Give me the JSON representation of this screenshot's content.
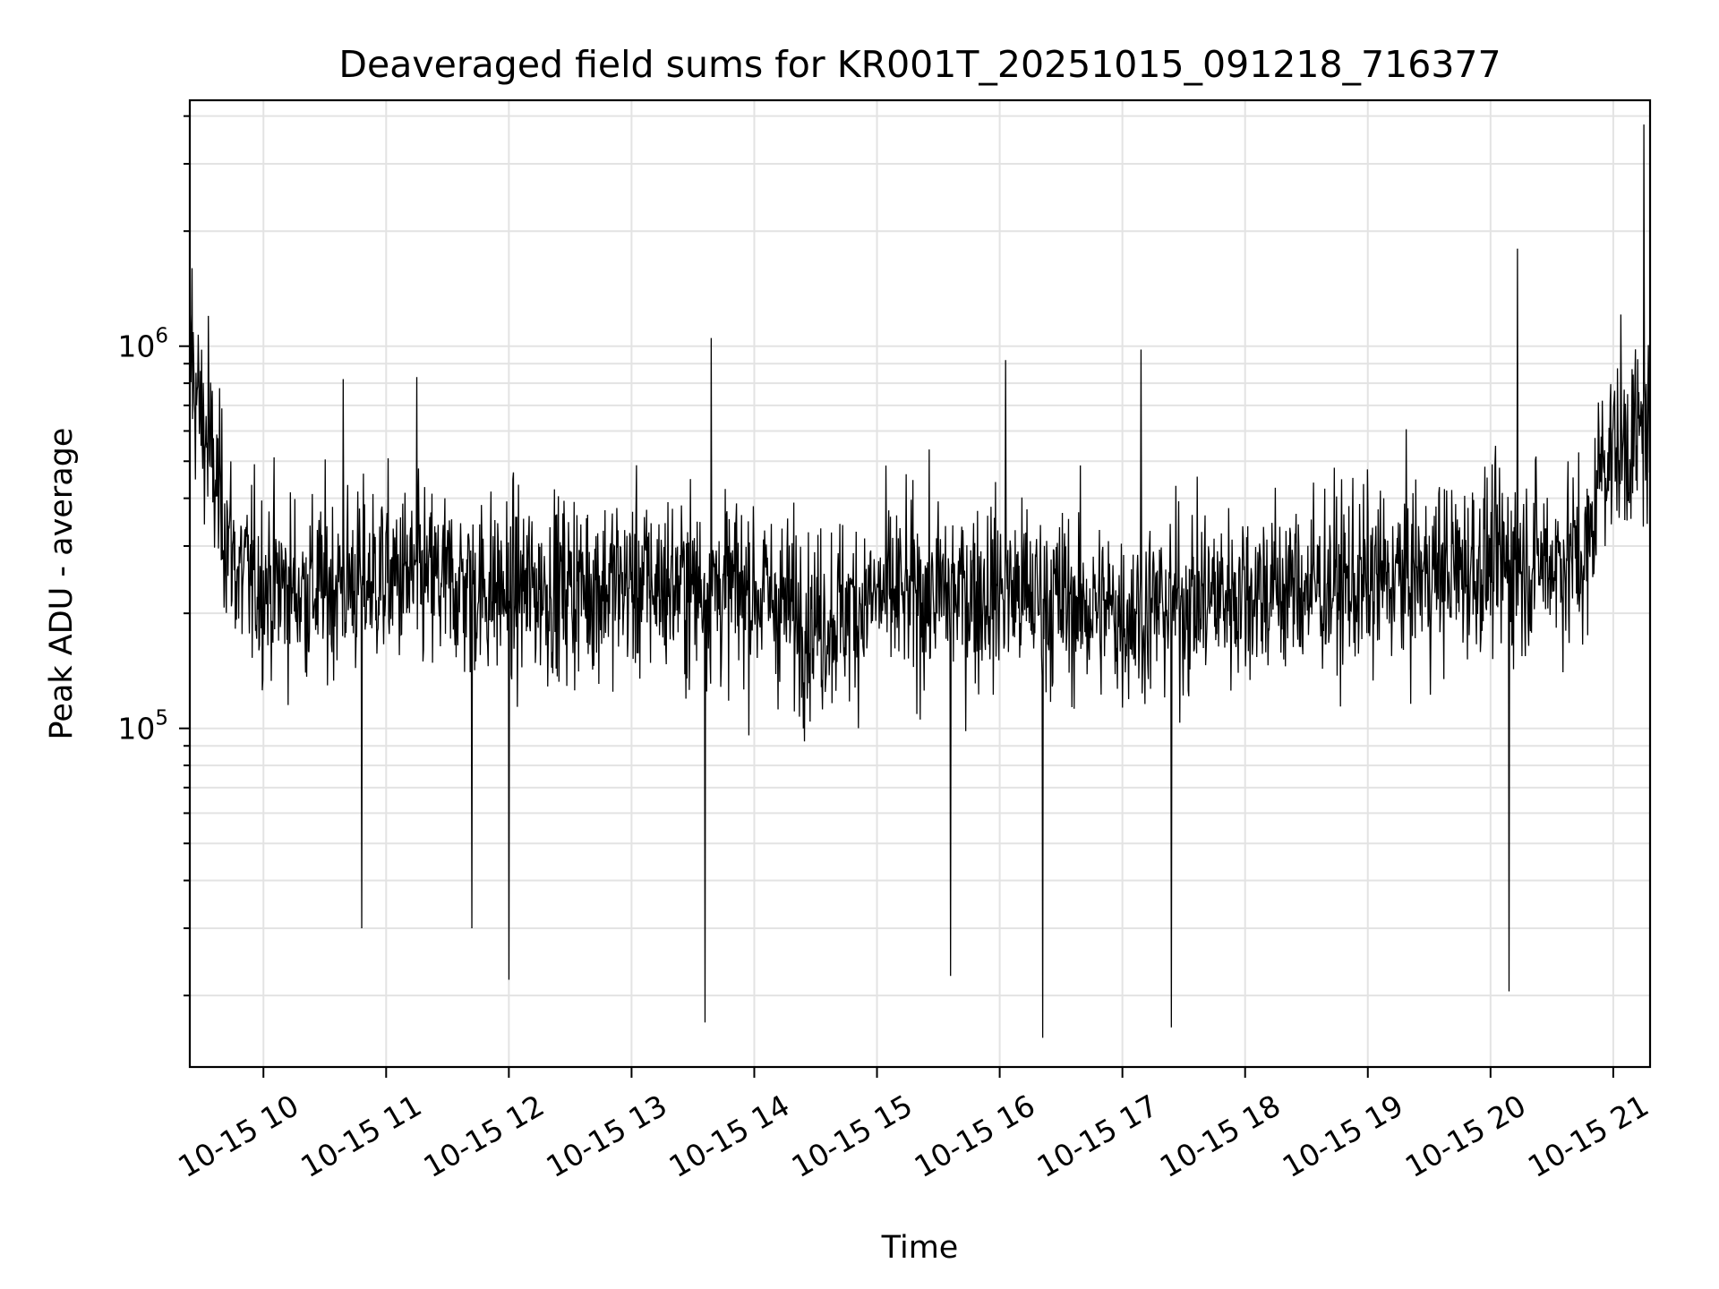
{
  "chart_data": {
    "type": "line",
    "title": "Deaveraged field sums for KR001T_20251015_091218_716377",
    "xlabel": "Time",
    "ylabel": "Peak ADU - average",
    "yscale": "log",
    "ylim": [
      13000,
      4400000
    ],
    "xlim_hours": [
      9.4,
      21.3
    ],
    "grid": true,
    "line_color": "#000000",
    "x_ticks": [
      {
        "hour": 10,
        "label": "10-15 10"
      },
      {
        "hour": 11,
        "label": "10-15 11"
      },
      {
        "hour": 12,
        "label": "10-15 12"
      },
      {
        "hour": 13,
        "label": "10-15 13"
      },
      {
        "hour": 14,
        "label": "10-15 14"
      },
      {
        "hour": 15,
        "label": "10-15 15"
      },
      {
        "hour": 16,
        "label": "10-15 16"
      },
      {
        "hour": 17,
        "label": "10-15 17"
      },
      {
        "hour": 18,
        "label": "10-15 18"
      },
      {
        "hour": 19,
        "label": "10-15 19"
      },
      {
        "hour": 20,
        "label": "10-15 20"
      },
      {
        "hour": 21,
        "label": "10-15 21"
      }
    ],
    "y_major_ticks": [
      {
        "value": 100000,
        "base": "10",
        "exp": "5"
      },
      {
        "value": 1000000,
        "base": "10",
        "exp": "6"
      }
    ],
    "series": [
      {
        "name": "Peak ADU - average",
        "baseline": [
          {
            "hour": 9.4,
            "value": 900000
          },
          {
            "hour": 9.6,
            "value": 450000
          },
          {
            "hour": 9.8,
            "value": 250000
          },
          {
            "hour": 10.3,
            "value": 230000
          },
          {
            "hour": 11.0,
            "value": 250000
          },
          {
            "hour": 12.0,
            "value": 230000
          },
          {
            "hour": 13.0,
            "value": 240000
          },
          {
            "hour": 14.0,
            "value": 230000
          },
          {
            "hour": 14.5,
            "value": 190000
          },
          {
            "hour": 15.0,
            "value": 220000
          },
          {
            "hour": 16.0,
            "value": 230000
          },
          {
            "hour": 17.0,
            "value": 200000
          },
          {
            "hour": 18.0,
            "value": 230000
          },
          {
            "hour": 19.0,
            "value": 240000
          },
          {
            "hour": 20.0,
            "value": 270000
          },
          {
            "hour": 20.8,
            "value": 280000
          },
          {
            "hour": 20.9,
            "value": 520000
          },
          {
            "hour": 21.3,
            "value": 600000
          }
        ],
        "spikes": [
          {
            "hour": 9.42,
            "value": 1600000
          },
          {
            "hour": 9.55,
            "value": 1200000
          },
          {
            "hour": 10.65,
            "value": 820000
          },
          {
            "hour": 11.25,
            "value": 830000
          },
          {
            "hour": 13.65,
            "value": 1050000
          },
          {
            "hour": 16.05,
            "value": 920000
          },
          {
            "hour": 17.15,
            "value": 980000
          },
          {
            "hour": 20.22,
            "value": 1800000
          },
          {
            "hour": 21.25,
            "value": 3800000
          },
          {
            "hour": 13.6,
            "value": 17000
          },
          {
            "hour": 16.35,
            "value": 15500
          },
          {
            "hour": 17.4,
            "value": 16500
          },
          {
            "hour": 20.15,
            "value": 20500
          },
          {
            "hour": 12.0,
            "value": 22000
          },
          {
            "hour": 15.6,
            "value": 22500
          },
          {
            "hour": 10.8,
            "value": 30000
          },
          {
            "hour": 11.7,
            "value": 30000
          }
        ],
        "samples": 2600
      }
    ]
  }
}
